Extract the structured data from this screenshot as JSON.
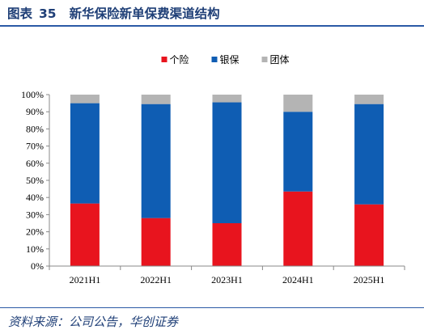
{
  "figure": {
    "label": "图表",
    "number": "35",
    "title": "新华保险新单保费渠道结构",
    "source": "资料来源：公司公告，华创证券"
  },
  "colors": {
    "header_text": "#1f3f77",
    "rule": "#2b5aa6",
    "axis": "#888888"
  },
  "chart_data": {
    "type": "bar",
    "stacked": true,
    "title": "",
    "xlabel": "",
    "ylabel": "",
    "categories": [
      "2021H1",
      "2022H1",
      "2023H1",
      "2024H1",
      "2025H1"
    ],
    "series": [
      {
        "name": "个险",
        "color": "#e8141e",
        "values": [
          36.5,
          28.0,
          25.0,
          43.5,
          36.0
        ]
      },
      {
        "name": "银保",
        "color": "#0f5db3",
        "values": [
          58.5,
          66.5,
          70.5,
          46.5,
          58.5
        ]
      },
      {
        "name": "团体",
        "color": "#b4b4b4",
        "values": [
          5.0,
          5.5,
          4.5,
          10.0,
          5.5
        ]
      }
    ],
    "ylim": [
      0,
      100
    ],
    "yticks": [
      "0%",
      "10%",
      "20%",
      "30%",
      "40%",
      "50%",
      "60%",
      "70%",
      "80%",
      "90%",
      "100%"
    ],
    "legend_position": "top",
    "grid": false
  }
}
